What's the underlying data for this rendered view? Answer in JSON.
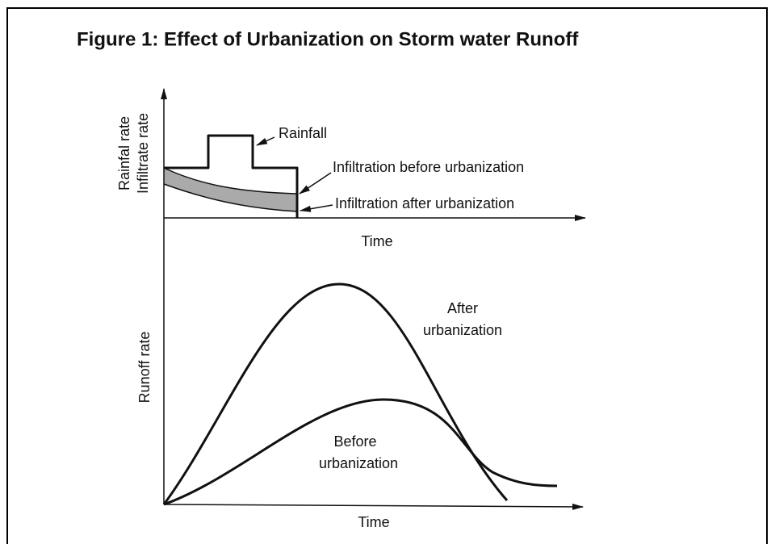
{
  "title": "Figure 1: Effect of Urbanization on Storm water Runoff",
  "top_panel": {
    "y_labels": [
      "Rainfal rate",
      "Infiltrate rate"
    ],
    "x_label": "Time",
    "annotations": [
      "Rainfall",
      "Infiltration before urbanization",
      "Infiltration after urbanization"
    ]
  },
  "bottom_panel": {
    "y_label": "Runoff rate",
    "x_label": "Time",
    "annotations": [
      [
        "After",
        "urbanization"
      ],
      [
        "Before",
        "urbanization"
      ]
    ]
  }
}
